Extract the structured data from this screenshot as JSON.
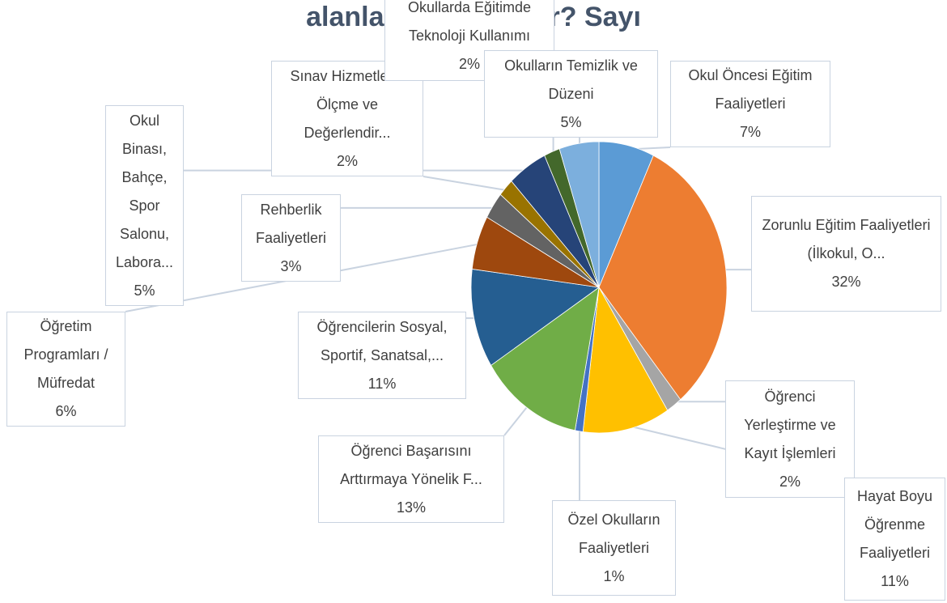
{
  "chart_data": {
    "type": "pie",
    "title": "alanları hangileridir? Sayı",
    "categories": [
      "Okul Öncesi Eğitim Faaliyetleri",
      "Zorunlu Eğitim Faaliyetleri (İlkokul, O...",
      "Öğrenci Yerleştirme ve Kayıt İşlemleri",
      "Hayat Boyu Öğrenme Faaliyetleri",
      "Özel Okulların Faaliyetleri",
      "Öğrenci Başarısını Arttırmaya Yönelik F...",
      "Öğrencilerin Sosyal, Sportif, Sanatsal,...",
      "Öğretim Programları / Müfredat",
      "Rehberlik Faaliyetleri",
      "Sınav Hizmetleri / Ölçme ve Değerlendir...",
      "Okul Binası, Bahçe, Spor Salonu, Labora...",
      "Okullarda Eğitimde Teknoloji Kullanımı",
      "Okulların Temizlik ve Düzeni"
    ],
    "values": [
      7,
      32,
      2,
      11,
      1,
      13,
      11,
      6,
      3,
      2,
      5,
      2,
      5
    ],
    "value_labels": [
      "7%",
      "32%",
      "2%",
      "11%",
      "1%",
      "13%",
      "11%",
      "6%",
      "3%",
      "2%",
      "5%",
      "2%",
      "5%"
    ],
    "colors": [
      "#5b9bd5",
      "#ed7d31",
      "#a5a5a5",
      "#ffc000",
      "#4472c4",
      "#70ad47",
      "#255e91",
      "#9e480e",
      "#636363",
      "#997300",
      "#264478",
      "#43682b",
      "#7cafdd"
    ]
  }
}
